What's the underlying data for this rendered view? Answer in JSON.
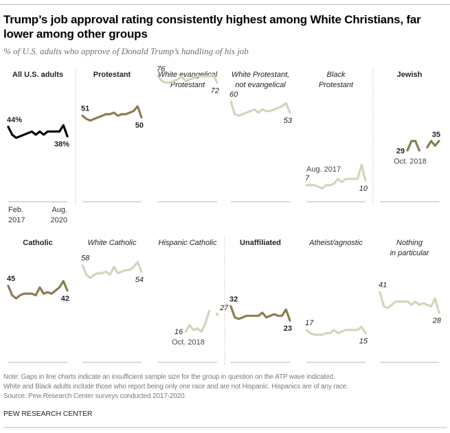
{
  "header": {
    "title": "Trump’s job approval rating consistently highest among White Christians, far lower among other groups",
    "subtitle": "% of U.S. adults who approve of Donald Trump’s handling of his job"
  },
  "colors": {
    "black": "#000000",
    "dark_gold": "#8a7c52",
    "light_beige": "#d7d2bc",
    "axis": "#d9d9d9",
    "divider": "#bdbdbd",
    "label": "#222222",
    "annotation": "#444444"
  },
  "footer": {
    "note_lines": [
      "Note: Gaps in line charts indicate an insufficient sample size for the group in question on the ATP wave indicated.",
      "White and Black adults include those who report being only one race and are not Hispanic. Hispanics are of any race.",
      "Source: Pew Research Center surveys conducted 2017-2020."
    ],
    "brand": "PEW RESEARCH CENTER"
  },
  "chart_data": {
    "type": "line",
    "title": "Trump’s job approval rating consistently highest among White Christians, far lower among other groups",
    "subtitle": "% of U.S. adults who approve of Donald Trump’s handling of his job",
    "x_range": [
      "Feb. 2017",
      "Aug. 2020"
    ],
    "x_axis_labels": {
      "start": "Feb.\n2017",
      "end": "Aug.\n2020"
    },
    "ylim": [
      0,
      100
    ],
    "layout": "small multiples, 2 rows x 6 panels",
    "x_points": 16,
    "panels": [
      {
        "name": "All U.S. adults",
        "title_style": "bold",
        "color": "black",
        "start_label": "44%",
        "end_label": "38%",
        "values": [
          44,
          39,
          37,
          38,
          39,
          40,
          41,
          39,
          41,
          39,
          41,
          41,
          41,
          41,
          45,
          38
        ]
      },
      {
        "name": "Protestant",
        "title_style": "bold",
        "color": "dark_gold",
        "start_label": "51",
        "end_label": "50",
        "values": [
          51,
          49,
          48,
          49,
          50,
          51,
          52,
          52,
          53,
          51,
          52,
          52,
          53,
          54,
          57,
          50
        ]
      },
      {
        "name": "White evangelical Protestant",
        "title_style": "italic",
        "color": "light_beige",
        "start_label": "76",
        "end_label": "72",
        "values": [
          76,
          73,
          72,
          72,
          73,
          74,
          76,
          73,
          74,
          75,
          76,
          76,
          76,
          76,
          77,
          72
        ]
      },
      {
        "name": "White Protestant, not evangelical",
        "title_style": "italic",
        "color": "light_beige",
        "start_label": "60",
        "end_label": "53",
        "values": [
          60,
          52,
          51,
          52,
          53,
          54,
          55,
          53,
          55,
          54,
          54,
          55,
          56,
          57,
          59,
          53
        ]
      },
      {
        "name": "Black Protestant",
        "title_style": "italic",
        "color": "light_beige",
        "start_label": "7",
        "end_label": "10",
        "values": [
          7,
          7,
          7,
          6,
          5,
          7,
          7,
          8,
          11,
          9,
          11,
          11,
          11,
          11,
          20,
          10
        ],
        "annotations": [
          {
            "text": "Aug. 2017",
            "at": "start"
          }
        ]
      },
      {
        "name": "Jewish",
        "title_style": "bold",
        "color": "dark_gold",
        "start_label": "29",
        "end_label": "35",
        "values": [
          null,
          null,
          null,
          null,
          null,
          null,
          null,
          29,
          35,
          35,
          29,
          null,
          31,
          35,
          32,
          35
        ],
        "annotations": [
          {
            "text": "Oct. 2018",
            "at": "first_point"
          }
        ]
      },
      {
        "name": "Catholic",
        "title_style": "bold",
        "color": "dark_gold",
        "start_label": "45",
        "end_label": "42",
        "values": [
          45,
          39,
          37,
          39,
          40,
          40,
          40,
          39,
          44,
          40,
          41,
          40,
          42,
          44,
          48,
          42
        ]
      },
      {
        "name": "White Catholic",
        "title_style": "italic",
        "color": "light_beige",
        "start_label": "58",
        "end_label": "54",
        "values": [
          58,
          52,
          50,
          52,
          53,
          53,
          54,
          52,
          57,
          53,
          54,
          55,
          55,
          57,
          60,
          54
        ]
      },
      {
        "name": "Hispanic Catholic",
        "title_style": "italic",
        "color": "light_beige",
        "start_label": "16",
        "end_label": "27",
        "values": [
          null,
          null,
          null,
          null,
          null,
          null,
          null,
          16,
          20,
          17,
          18,
          16,
          21,
          29,
          null,
          27
        ],
        "annotations": [
          {
            "text": "Oct. 2018",
            "at": "first_point"
          }
        ]
      },
      {
        "name": "Unaffiliated",
        "title_style": "bold",
        "color": "dark_gold",
        "start_label": "32",
        "end_label": "23",
        "values": [
          32,
          25,
          24,
          25,
          26,
          26,
          26,
          26,
          28,
          25,
          26,
          27,
          26,
          26,
          30,
          23
        ]
      },
      {
        "name": "Atheist/agnostic",
        "title_style": "italic",
        "color": "light_beige",
        "start_label": "17",
        "end_label": "15",
        "values": [
          17,
          15,
          14,
          14,
          14,
          15,
          15,
          17,
          15,
          16,
          17,
          17,
          17,
          17,
          19,
          15
        ]
      },
      {
        "name": "Nothing in particular",
        "title_style": "italic",
        "color": "light_beige",
        "start_label": "41",
        "end_label": "28",
        "values": [
          41,
          32,
          31,
          33,
          35,
          35,
          35,
          35,
          33,
          35,
          33,
          34,
          33,
          32,
          37,
          28
        ]
      }
    ]
  }
}
